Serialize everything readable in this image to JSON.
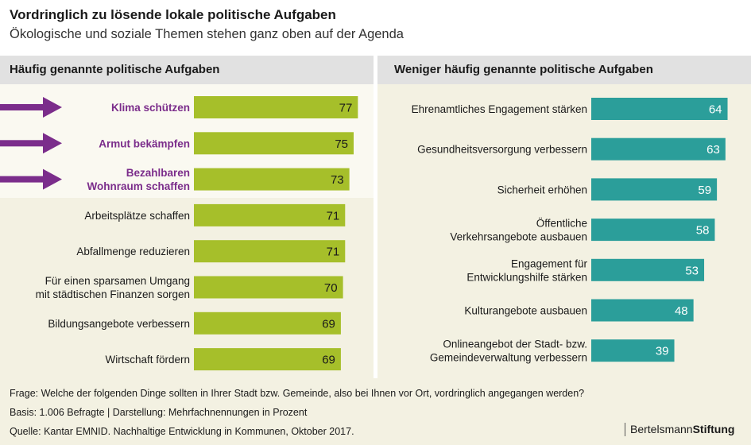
{
  "header": {
    "title": "Vordringlich zu lösende lokale politische Aufgaben",
    "subtitle": "Ökologische und soziale Themen stehen ganz oben auf der Agenda"
  },
  "colors": {
    "green": "#a6bf2a",
    "teal": "#2b9e9a",
    "purple": "#7b2d8b",
    "band": "#e1e1e1",
    "panel": "#f3f1e2",
    "highlight": "#faf9f1"
  },
  "chart_data": [
    {
      "type": "bar",
      "orientation": "horizontal",
      "title": "Häufig genannte politische Aufgaben",
      "categories": [
        "Klima schützen",
        "Armut bekämpfen",
        "Bezahlbaren Wohnraum schaffen",
        "Arbeitsplätze schaffen",
        "Abfallmenge reduzieren",
        "Für einen sparsamen Umgang mit städtischen Finanzen sorgen",
        "Bildungsangebote verbessern",
        "Wirtschaft fördern"
      ],
      "category_lines": [
        [
          "Klima schützen"
        ],
        [
          "Armut bekämpfen"
        ],
        [
          "Bezahlbaren",
          "Wohnraum schaffen"
        ],
        [
          "Arbeitsplätze schaffen"
        ],
        [
          "Abfallmenge reduzieren"
        ],
        [
          "Für einen sparsamen Umgang",
          "mit städtischen Finanzen sorgen"
        ],
        [
          "Bildungsangebote verbessern"
        ],
        [
          "Wirtschaft fördern"
        ]
      ],
      "values": [
        77,
        75,
        73,
        71,
        71,
        70,
        69,
        69
      ],
      "highlighted": [
        true,
        true,
        true,
        false,
        false,
        false,
        false,
        false
      ],
      "unit": "Prozent"
    },
    {
      "type": "bar",
      "orientation": "horizontal",
      "title": "Weniger häufig genannte politische Aufgaben",
      "categories": [
        "Ehrenamtliches Engagement stärken",
        "Gesundheitsversorgung verbessern",
        "Sicherheit erhöhen",
        "Öffentliche Verkehrsangebote ausbauen",
        "Engagement für Entwicklungshilfe stärken",
        "Kulturangebote ausbauen",
        "Onlineangebot der Stadt- bzw. Gemeindeverwaltung verbessern"
      ],
      "category_lines": [
        [
          "Ehrenamtliches Engagement stärken"
        ],
        [
          "Gesundheitsversorgung verbessern"
        ],
        [
          "Sicherheit erhöhen"
        ],
        [
          "Öffentliche",
          "Verkehrsangebote ausbauen"
        ],
        [
          "Engagement für",
          "Entwicklungshilfe stärken"
        ],
        [
          "Kulturangebote ausbauen"
        ],
        [
          "Onlineangebot der Stadt- bzw.",
          "Gemeindeverwaltung verbessern"
        ]
      ],
      "values": [
        64,
        63,
        59,
        58,
        53,
        48,
        39
      ],
      "unit": "Prozent"
    }
  ],
  "footer": {
    "question": "Frage: Welche der folgenden Dinge sollten in Ihrer Stadt bzw. Gemeinde, also bei Ihnen vor Ort, vordringlich angegangen werden?",
    "basis": "Basis: 1.006 Befragte | Darstellung: Mehrfachnennungen in Prozent",
    "source": "Quelle: Kantar EMNID. Nachhaltige Entwicklung in Kommunen, Oktober 2017.",
    "brand_regular": "Bertelsmann",
    "brand_bold": "Stiftung"
  }
}
